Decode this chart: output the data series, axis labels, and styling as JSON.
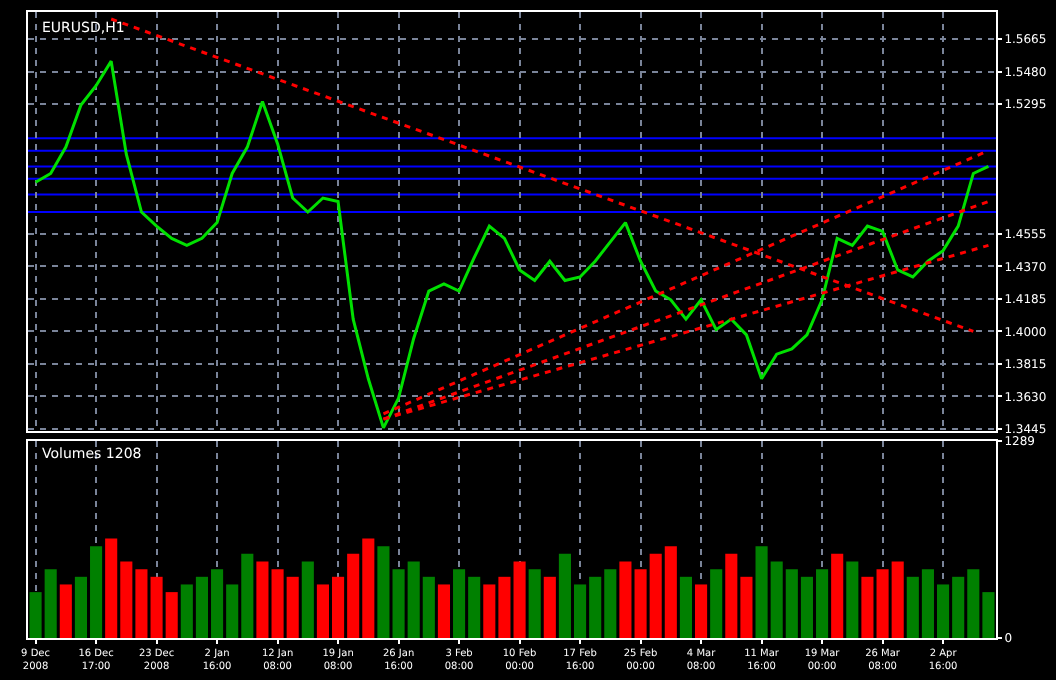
{
  "chart_data": [
    {
      "type": "line",
      "title": "EURUSD,H1",
      "categories": [
        null,
        null,
        null,
        null,
        null,
        null,
        null,
        null,
        null,
        null,
        null,
        null,
        null,
        null,
        null,
        null,
        null,
        null,
        null,
        null,
        null,
        null,
        null,
        null,
        null,
        null,
        null,
        null,
        null,
        null,
        null,
        null,
        null,
        null,
        null,
        null,
        null,
        null,
        null,
        null,
        null,
        null,
        null,
        null,
        null,
        null,
        null,
        null,
        null,
        null,
        null,
        null,
        null,
        null,
        null,
        null,
        null,
        null,
        null,
        null,
        null,
        null,
        null,
        null
      ],
      "series": [
        {
          "color": "#00e000",
          "values": [
            1.485,
            1.49,
            1.505,
            1.529,
            1.54,
            1.554,
            1.501,
            1.468,
            1.46,
            1.453,
            1.449,
            1.453,
            1.462,
            1.49,
            1.505,
            1.531,
            1.507,
            1.476,
            1.468,
            1.476,
            1.474,
            1.407,
            1.373,
            1.345,
            1.362,
            1.396,
            1.423,
            1.427,
            1.423,
            1.442,
            1.46,
            1.453,
            1.435,
            1.429,
            1.44,
            1.429,
            1.431,
            1.44,
            1.451,
            1.462,
            1.44,
            1.423,
            1.418,
            1.407,
            1.418,
            1.401,
            1.407,
            1.398,
            1.373,
            1.387,
            1.39,
            1.398,
            1.418,
            1.453,
            1.449,
            1.46,
            1.457,
            1.435,
            1.431,
            1.44,
            1.446,
            1.46,
            1.49,
            1.494
          ]
        },
        {
          "type": "line",
          "color": "#ff0000",
          "line_style": "dotted",
          "values": [
            null,
            null,
            null,
            null,
            null,
            1.578,
            null,
            null,
            null,
            null,
            null,
            null,
            null,
            null,
            null,
            null,
            null,
            null,
            null,
            null,
            null,
            null,
            null,
            null,
            null,
            null,
            null,
            null,
            null,
            null,
            null,
            null,
            null,
            null,
            null,
            null,
            null,
            null,
            null,
            null,
            null,
            null,
            null,
            null,
            null,
            null,
            null,
            null,
            null,
            null,
            null,
            null,
            null,
            null,
            null,
            null,
            null,
            null,
            null,
            null,
            null,
            null,
            1.4,
            null
          ]
        },
        {
          "type": "line",
          "color": "#ff0000",
          "line_style": "dotted",
          "values": [
            null,
            null,
            null,
            null,
            null,
            null,
            null,
            null,
            null,
            null,
            null,
            null,
            null,
            null,
            null,
            null,
            null,
            null,
            null,
            null,
            null,
            null,
            null,
            1.353,
            null,
            null,
            null,
            null,
            null,
            null,
            null,
            null,
            null,
            null,
            null,
            null,
            null,
            null,
            null,
            null,
            null,
            null,
            null,
            null,
            null,
            null,
            null,
            null,
            null,
            null,
            null,
            null,
            null,
            null,
            null,
            null,
            null,
            null,
            null,
            null,
            null,
            null,
            null,
            1.503
          ]
        },
        {
          "type": "line",
          "color": "#ff0000",
          "line_style": "dotted",
          "values": [
            null,
            null,
            null,
            null,
            null,
            null,
            null,
            null,
            null,
            null,
            null,
            null,
            null,
            null,
            null,
            null,
            null,
            null,
            null,
            null,
            null,
            null,
            null,
            1.35,
            null,
            null,
            null,
            null,
            null,
            null,
            null,
            null,
            null,
            null,
            null,
            null,
            null,
            null,
            null,
            null,
            null,
            null,
            null,
            null,
            null,
            null,
            null,
            null,
            null,
            null,
            null,
            null,
            null,
            null,
            null,
            null,
            null,
            null,
            null,
            null,
            null,
            null,
            null,
            1.474
          ]
        },
        {
          "type": "line",
          "color": "#ff0000",
          "line_style": "dotted",
          "values": [
            null,
            null,
            null,
            null,
            null,
            null,
            null,
            null,
            null,
            null,
            null,
            null,
            null,
            null,
            null,
            null,
            null,
            null,
            null,
            null,
            null,
            null,
            null,
            1.35,
            null,
            null,
            null,
            null,
            null,
            null,
            null,
            null,
            null,
            null,
            null,
            null,
            null,
            null,
            null,
            null,
            null,
            null,
            null,
            null,
            null,
            null,
            null,
            null,
            null,
            null,
            null,
            null,
            null,
            null,
            null,
            null,
            null,
            null,
            null,
            null,
            null,
            null,
            null,
            1.449
          ]
        }
      ],
      "ylim": [
        1.343,
        1.582
      ],
      "yticks": [
        {
          "value": 1.3445,
          "label": "1.3445"
        },
        {
          "value": 1.363,
          "label": "1.3630"
        },
        {
          "value": 1.3815,
          "label": "1.3815"
        },
        {
          "value": 1.4,
          "label": "1.4000"
        },
        {
          "value": 1.4185,
          "label": "1.4185"
        },
        {
          "value": 1.437,
          "label": "1.4370"
        },
        {
          "value": 1.4555,
          "label": "1.4555"
        },
        {
          "value": 1.5295,
          "label": "1.5295"
        },
        {
          "value": 1.548,
          "label": "1.5480"
        },
        {
          "value": 1.5665,
          "label": "1.5665"
        }
      ],
      "ref_lines": [
        {
          "axis": "y",
          "value": 1.51,
          "color": "#0000ff"
        },
        {
          "axis": "y",
          "value": 1.503,
          "color": "#0000ff"
        },
        {
          "axis": "y",
          "value": 1.494,
          "color": "#0000ff"
        },
        {
          "axis": "y",
          "value": 1.487,
          "color": "#0000ff"
        },
        {
          "axis": "y",
          "value": 1.478,
          "color": "#0000ff"
        },
        {
          "axis": "y",
          "value": 1.468,
          "color": "#0000ff"
        }
      ],
      "tick_labels": "y",
      "grid": true,
      "marker": "none"
    },
    {
      "type": "bar",
      "title": "Volumes 1208",
      "categories": [
        "9 Dec 2008",
        null,
        null,
        null,
        "16 Dec 17:00",
        null,
        null,
        null,
        "23 Dec 2008",
        null,
        null,
        null,
        "2 Jan 16:00",
        null,
        null,
        null,
        "12 Jan 08:00",
        null,
        null,
        null,
        "19 Jan 08:00",
        null,
        null,
        null,
        "26 Jan 16:00",
        null,
        null,
        null,
        "3 Feb 08:00",
        null,
        null,
        null,
        "10 Feb 00:00",
        null,
        null,
        null,
        "17 Feb 16:00",
        null,
        null,
        null,
        "25 Feb 00:00",
        null,
        null,
        null,
        "4 Mar 08:00",
        null,
        null,
        null,
        "11 Mar 16:00",
        null,
        null,
        null,
        "19 Mar 00:00",
        null,
        null,
        null,
        "26 Mar 08:00",
        null,
        null,
        null,
        "2 Apr 16:00",
        null,
        null,
        null
      ],
      "series": [
        {
          "values": [
            300,
            450,
            350,
            400,
            600,
            650,
            500,
            450,
            400,
            300,
            350,
            400,
            450,
            350,
            550,
            500,
            450,
            400,
            500,
            350,
            400,
            550,
            650,
            600,
            450,
            500,
            400,
            350,
            450,
            400,
            350,
            400,
            500,
            450,
            400,
            550,
            350,
            400,
            450,
            500,
            450,
            550,
            600,
            400,
            350,
            450,
            550,
            400,
            600,
            500,
            450,
            400,
            450,
            550,
            500,
            400,
            450,
            500,
            400,
            450,
            350,
            400,
            450,
            300
          ],
          "colors": [
            "#008000",
            "#008000",
            "#ff0000",
            "#008000",
            "#008000",
            "#ff0000",
            "#ff0000",
            "#ff0000",
            "#ff0000",
            "#ff0000",
            "#008000",
            "#008000",
            "#008000",
            "#008000",
            "#008000",
            "#ff0000",
            "#ff0000",
            "#ff0000",
            "#008000",
            "#ff0000",
            "#ff0000",
            "#ff0000",
            "#ff0000",
            "#008000",
            "#008000",
            "#008000",
            "#008000",
            "#ff0000",
            "#008000",
            "#008000",
            "#ff0000",
            "#ff0000",
            "#ff0000",
            "#008000",
            "#ff0000",
            "#008000",
            "#008000",
            "#008000",
            "#008000",
            "#ff0000",
            "#ff0000",
            "#ff0000",
            "#ff0000",
            "#008000",
            "#ff0000",
            "#008000",
            "#ff0000",
            "#ff0000",
            "#008000",
            "#008000",
            "#008000",
            "#008000",
            "#008000",
            "#ff0000",
            "#008000",
            "#ff0000",
            "#ff0000",
            "#ff0000",
            "#008000",
            "#008000",
            "#008000",
            "#008000",
            "#008000",
            "#008000"
          ]
        }
      ],
      "ylim": [
        0,
        1289
      ],
      "yticks": [
        0,
        1289
      ],
      "grid": "x"
    }
  ]
}
